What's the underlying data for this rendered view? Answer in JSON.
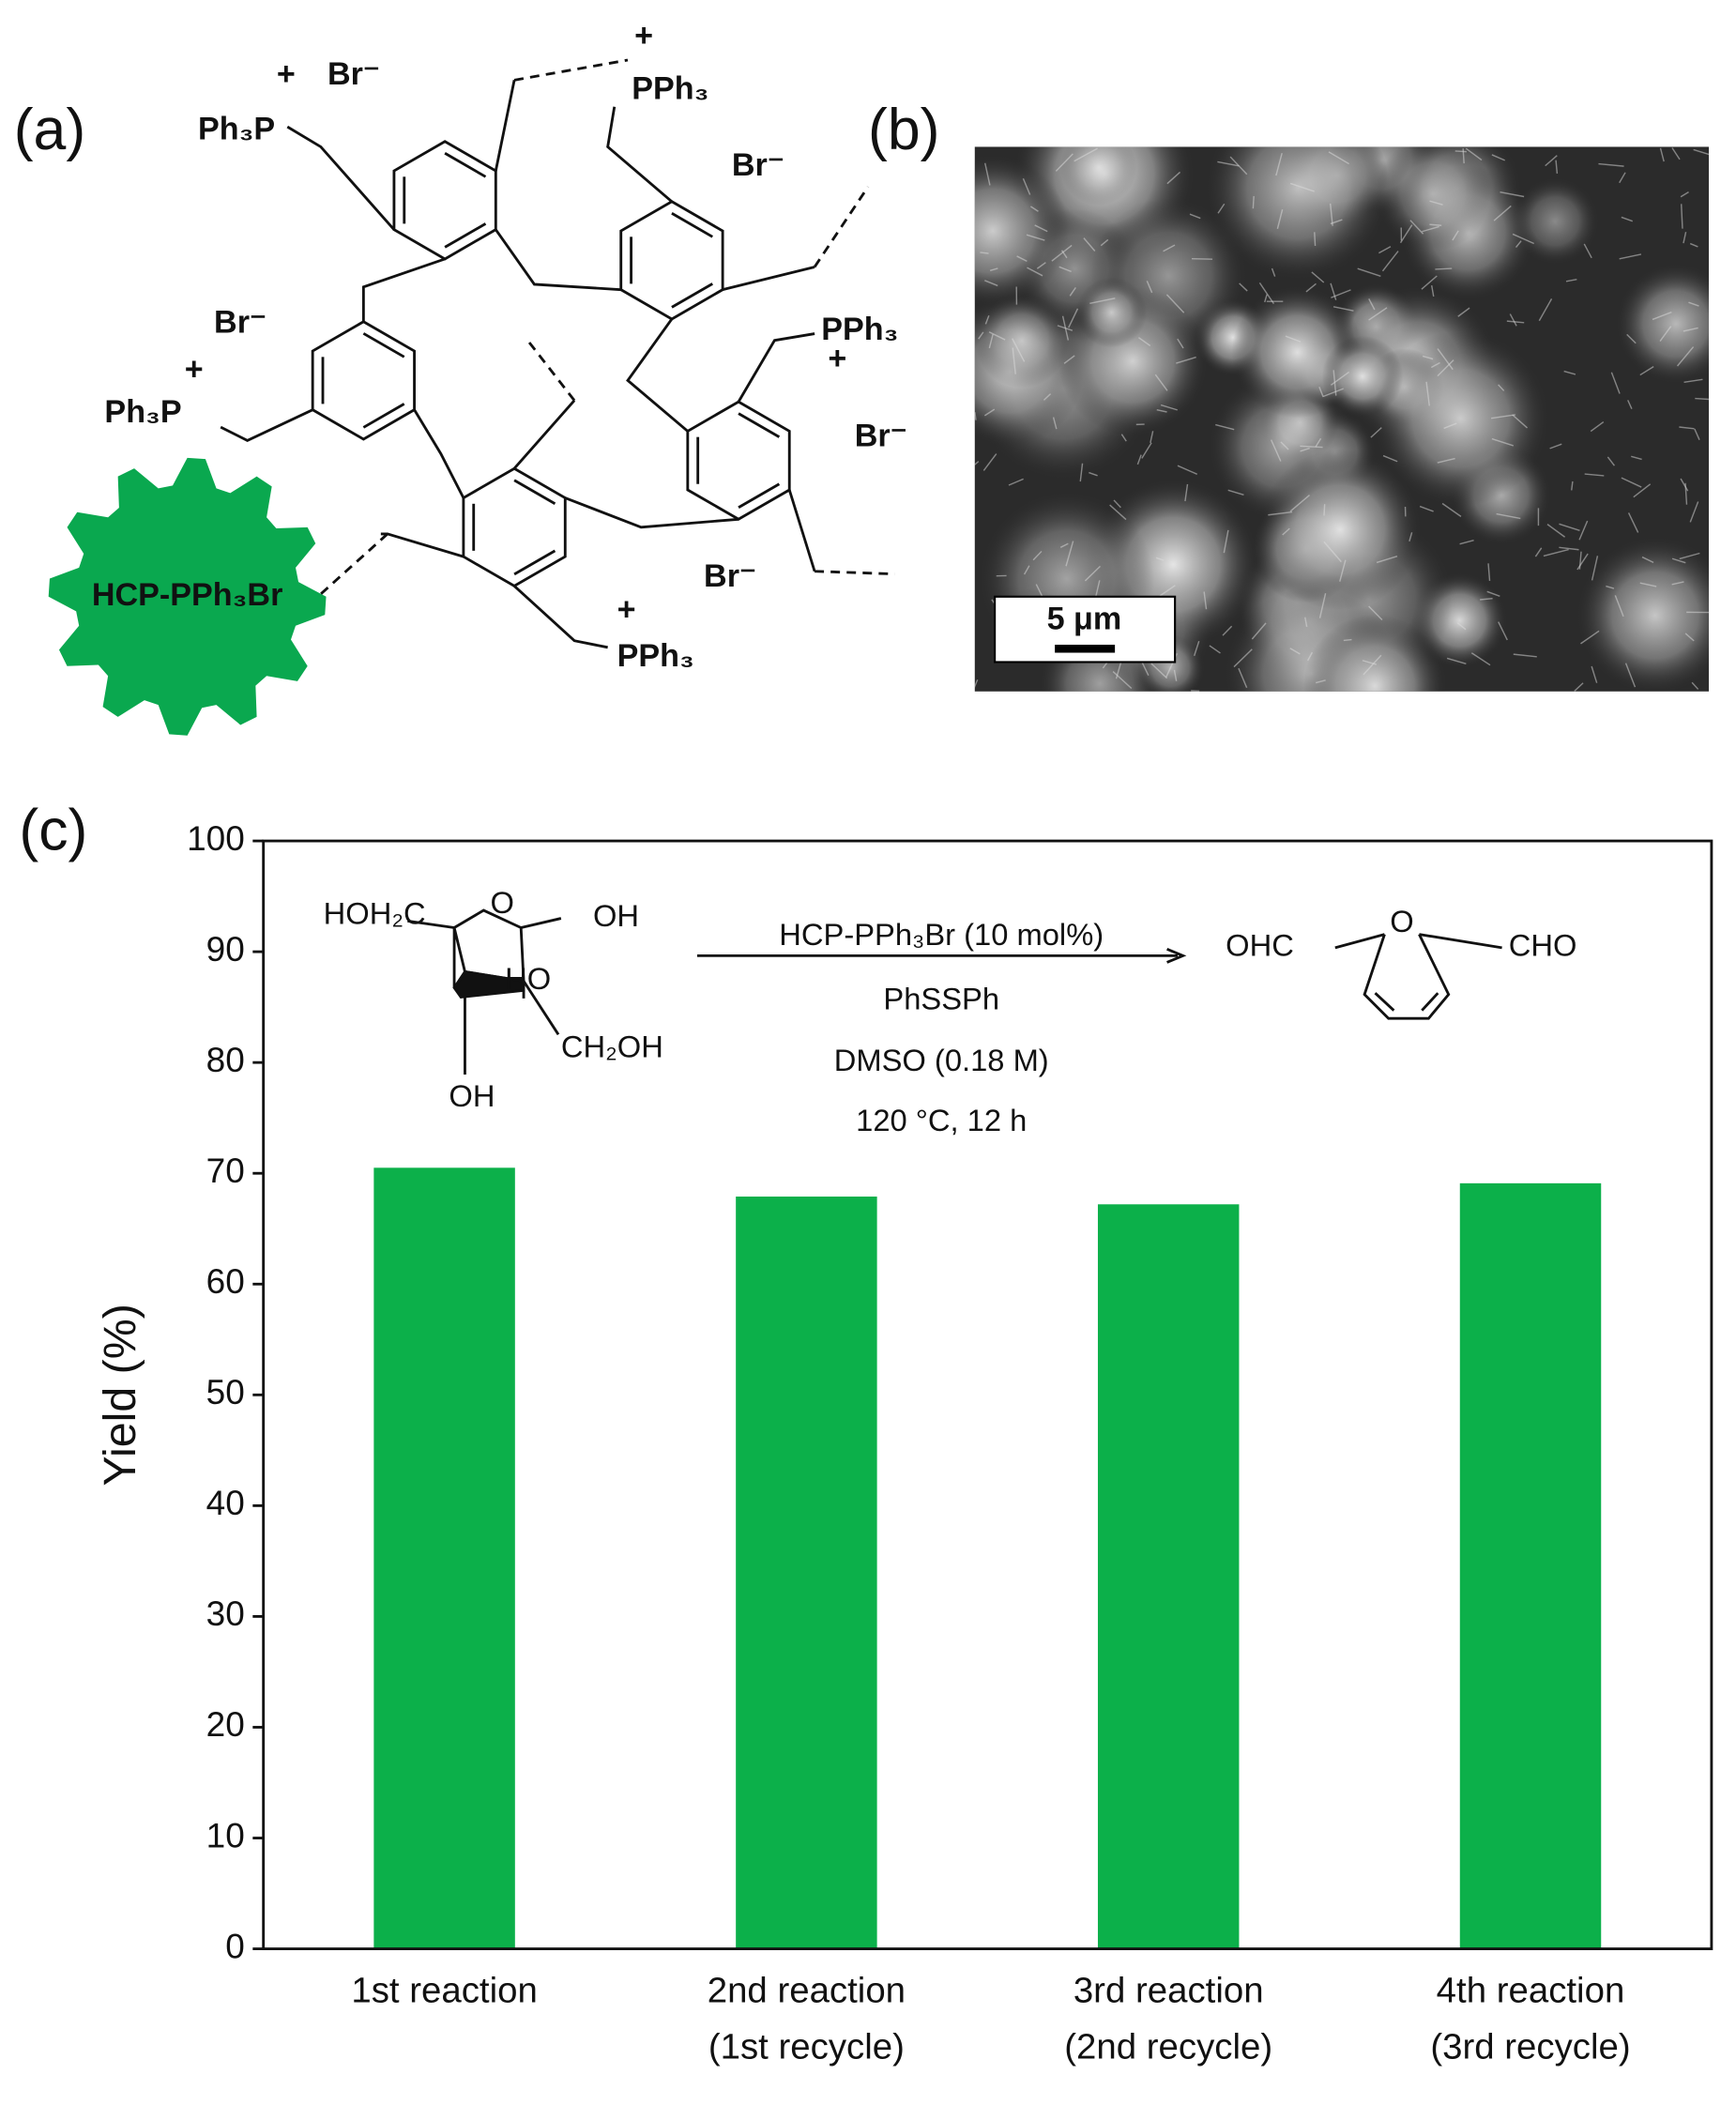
{
  "panel_a": {
    "label": "(a)",
    "badge": "HCP-PPh₃Br",
    "texts": [
      "Ph₃P",
      "+",
      "Br⁻",
      "PPh₃",
      "+",
      "Br⁻",
      "Br⁻",
      "Ph₃P",
      "+",
      "PPh₃",
      "+",
      "Br⁻",
      "Br⁻",
      "PPh₃",
      "+"
    ]
  },
  "panel_b": {
    "label": "(b)",
    "scale_bar": "5 μm"
  },
  "panel_c": {
    "label": "(c)",
    "scheme": {
      "reactant": [
        "HOH₂C",
        "O",
        "OH",
        "HO",
        "CH₂OH",
        "OH"
      ],
      "conditions": [
        "HCP-PPh₃Br (10 mol%)",
        "PhSSPh",
        "DMSO (0.18 M)",
        "120 °C, 12 h"
      ],
      "product": [
        "OHC",
        "O",
        "CHO"
      ]
    }
  },
  "chart_data": {
    "type": "bar",
    "y_label": "Yield (%)",
    "categories": [
      [
        "1st reaction"
      ],
      [
        "2nd reaction",
        "(1st recycle)"
      ],
      [
        "3rd reaction",
        "(2nd recycle)"
      ],
      [
        "4th reaction",
        "(3rd recycle)"
      ]
    ],
    "values": [
      70.5,
      67.9,
      67.2,
      69.1
    ],
    "color": "#0cb04a",
    "ylim": [
      0,
      100
    ],
    "yticks": [
      0,
      10,
      20,
      30,
      40,
      50,
      60,
      70,
      80,
      90,
      100
    ],
    "grid": false
  }
}
